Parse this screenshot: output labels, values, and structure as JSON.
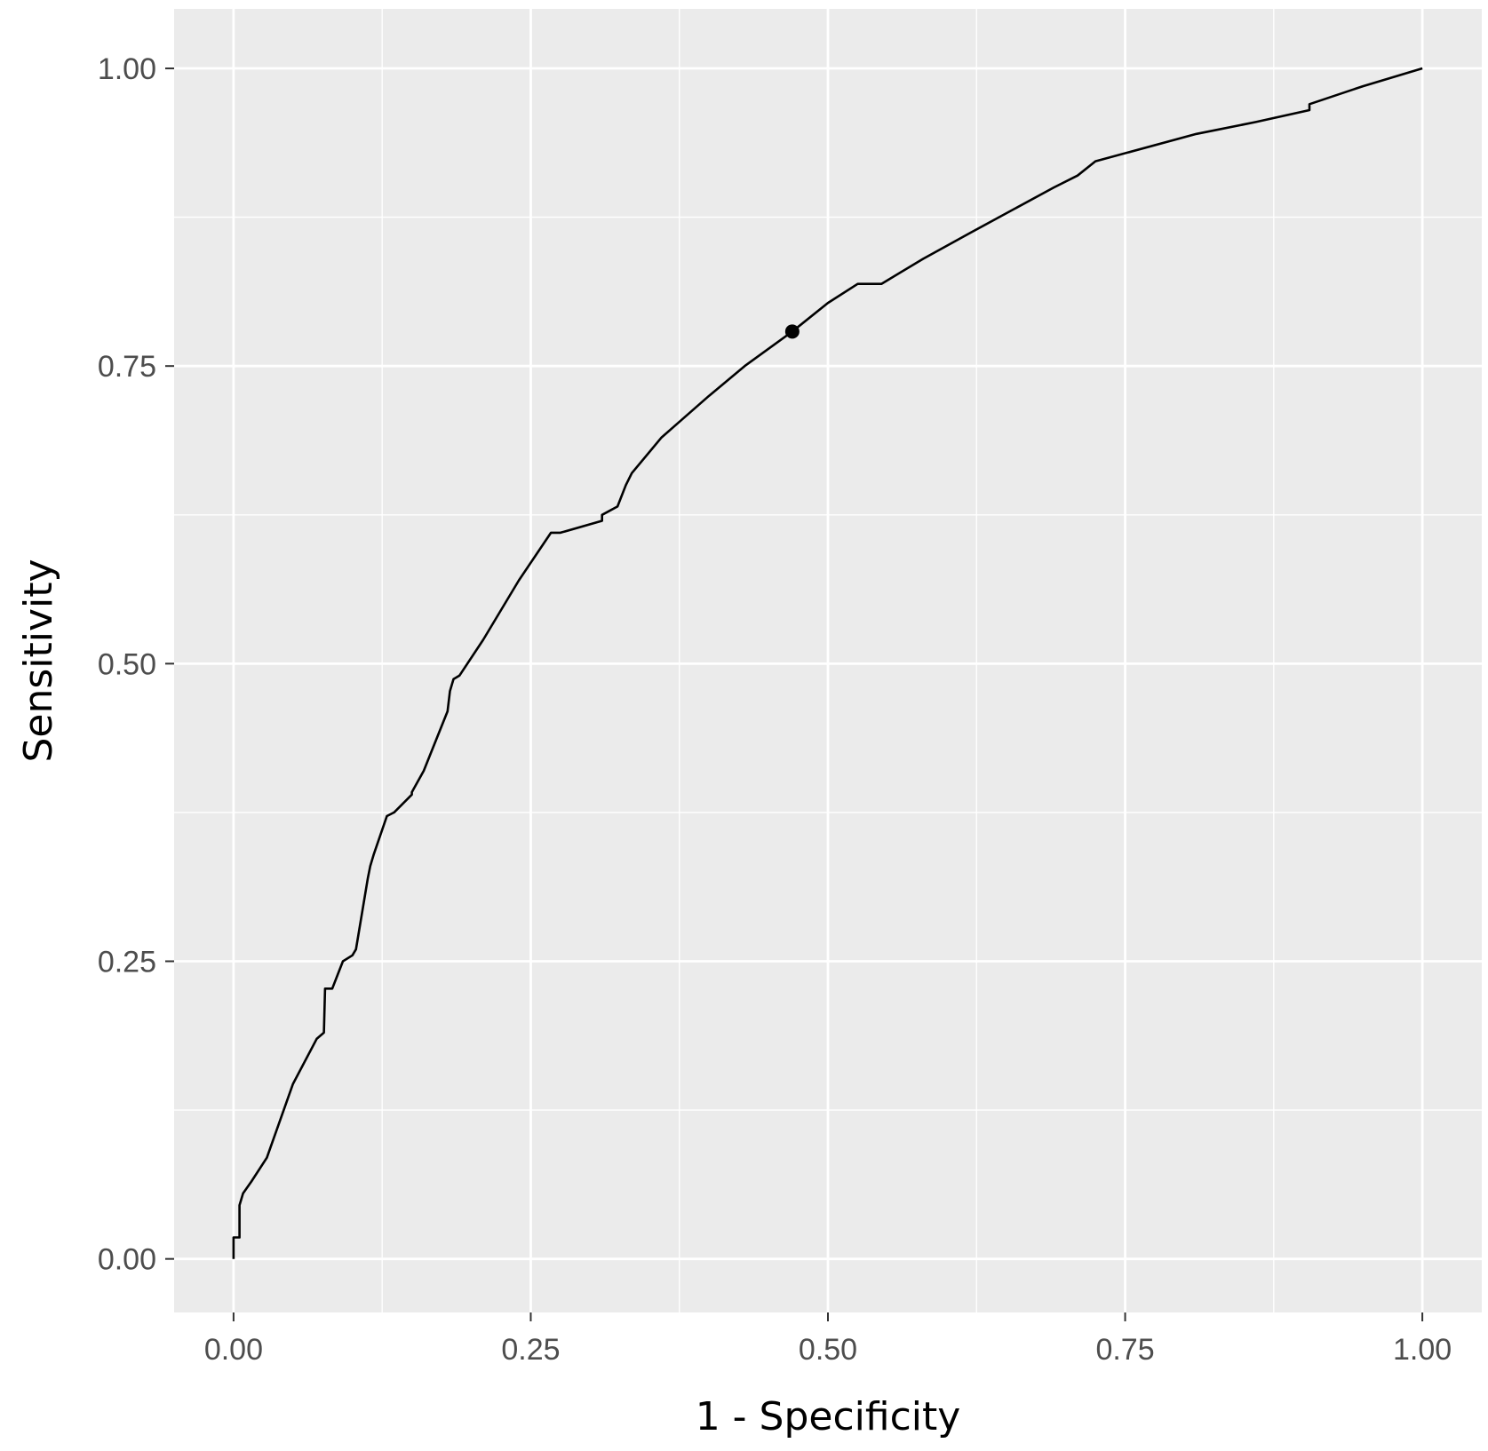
{
  "chart_data": {
    "type": "line",
    "title": "",
    "xlabel": "1 - Specificity",
    "ylabel": "Sensitivity",
    "xlim": [
      -0.05,
      1.05
    ],
    "ylim": [
      -0.045,
      1.05
    ],
    "x_ticks": [
      0.0,
      0.25,
      0.5,
      0.75,
      1.0
    ],
    "x_tick_labels": [
      "0.00",
      "0.25",
      "0.50",
      "0.75",
      "1.00"
    ],
    "y_ticks": [
      0.0,
      0.25,
      0.5,
      0.75,
      1.0
    ],
    "y_tick_labels": [
      "0.00",
      "0.25",
      "0.50",
      "0.75",
      "1.00"
    ],
    "grid": true,
    "background": "#ebebeb",
    "gridline_color": "#ffffff",
    "line_color": "#000000",
    "series": [
      {
        "x": [
          0.0,
          0.0,
          0.003,
          0.005,
          0.005,
          0.008,
          0.015,
          0.028,
          0.05,
          0.07,
          0.076,
          0.077,
          0.083,
          0.092,
          0.1,
          0.103,
          0.113,
          0.115,
          0.118,
          0.129,
          0.135,
          0.15,
          0.15,
          0.16,
          0.18,
          0.182,
          0.185,
          0.19,
          0.21,
          0.24,
          0.267,
          0.275,
          0.31,
          0.31,
          0.323,
          0.33,
          0.335,
          0.36,
          0.4,
          0.43,
          0.47,
          0.5,
          0.525,
          0.545,
          0.58,
          0.62,
          0.69,
          0.71,
          0.725,
          0.81,
          0.86,
          0.905,
          0.905,
          0.95,
          1.0
        ],
        "y": [
          0.0,
          0.018,
          0.018,
          0.018,
          0.045,
          0.055,
          0.065,
          0.085,
          0.147,
          0.185,
          0.19,
          0.227,
          0.227,
          0.25,
          0.255,
          0.26,
          0.32,
          0.33,
          0.34,
          0.372,
          0.375,
          0.39,
          0.392,
          0.41,
          0.46,
          0.477,
          0.487,
          0.49,
          0.52,
          0.57,
          0.61,
          0.61,
          0.62,
          0.625,
          0.632,
          0.65,
          0.66,
          0.69,
          0.725,
          0.75,
          0.779,
          0.803,
          0.819,
          0.819,
          0.84,
          0.862,
          0.9,
          0.91,
          0.922,
          0.945,
          0.955,
          0.965,
          0.97,
          0.985,
          1.0
        ]
      }
    ],
    "markers": [
      {
        "x": 0.47,
        "y": 0.779
      }
    ]
  }
}
